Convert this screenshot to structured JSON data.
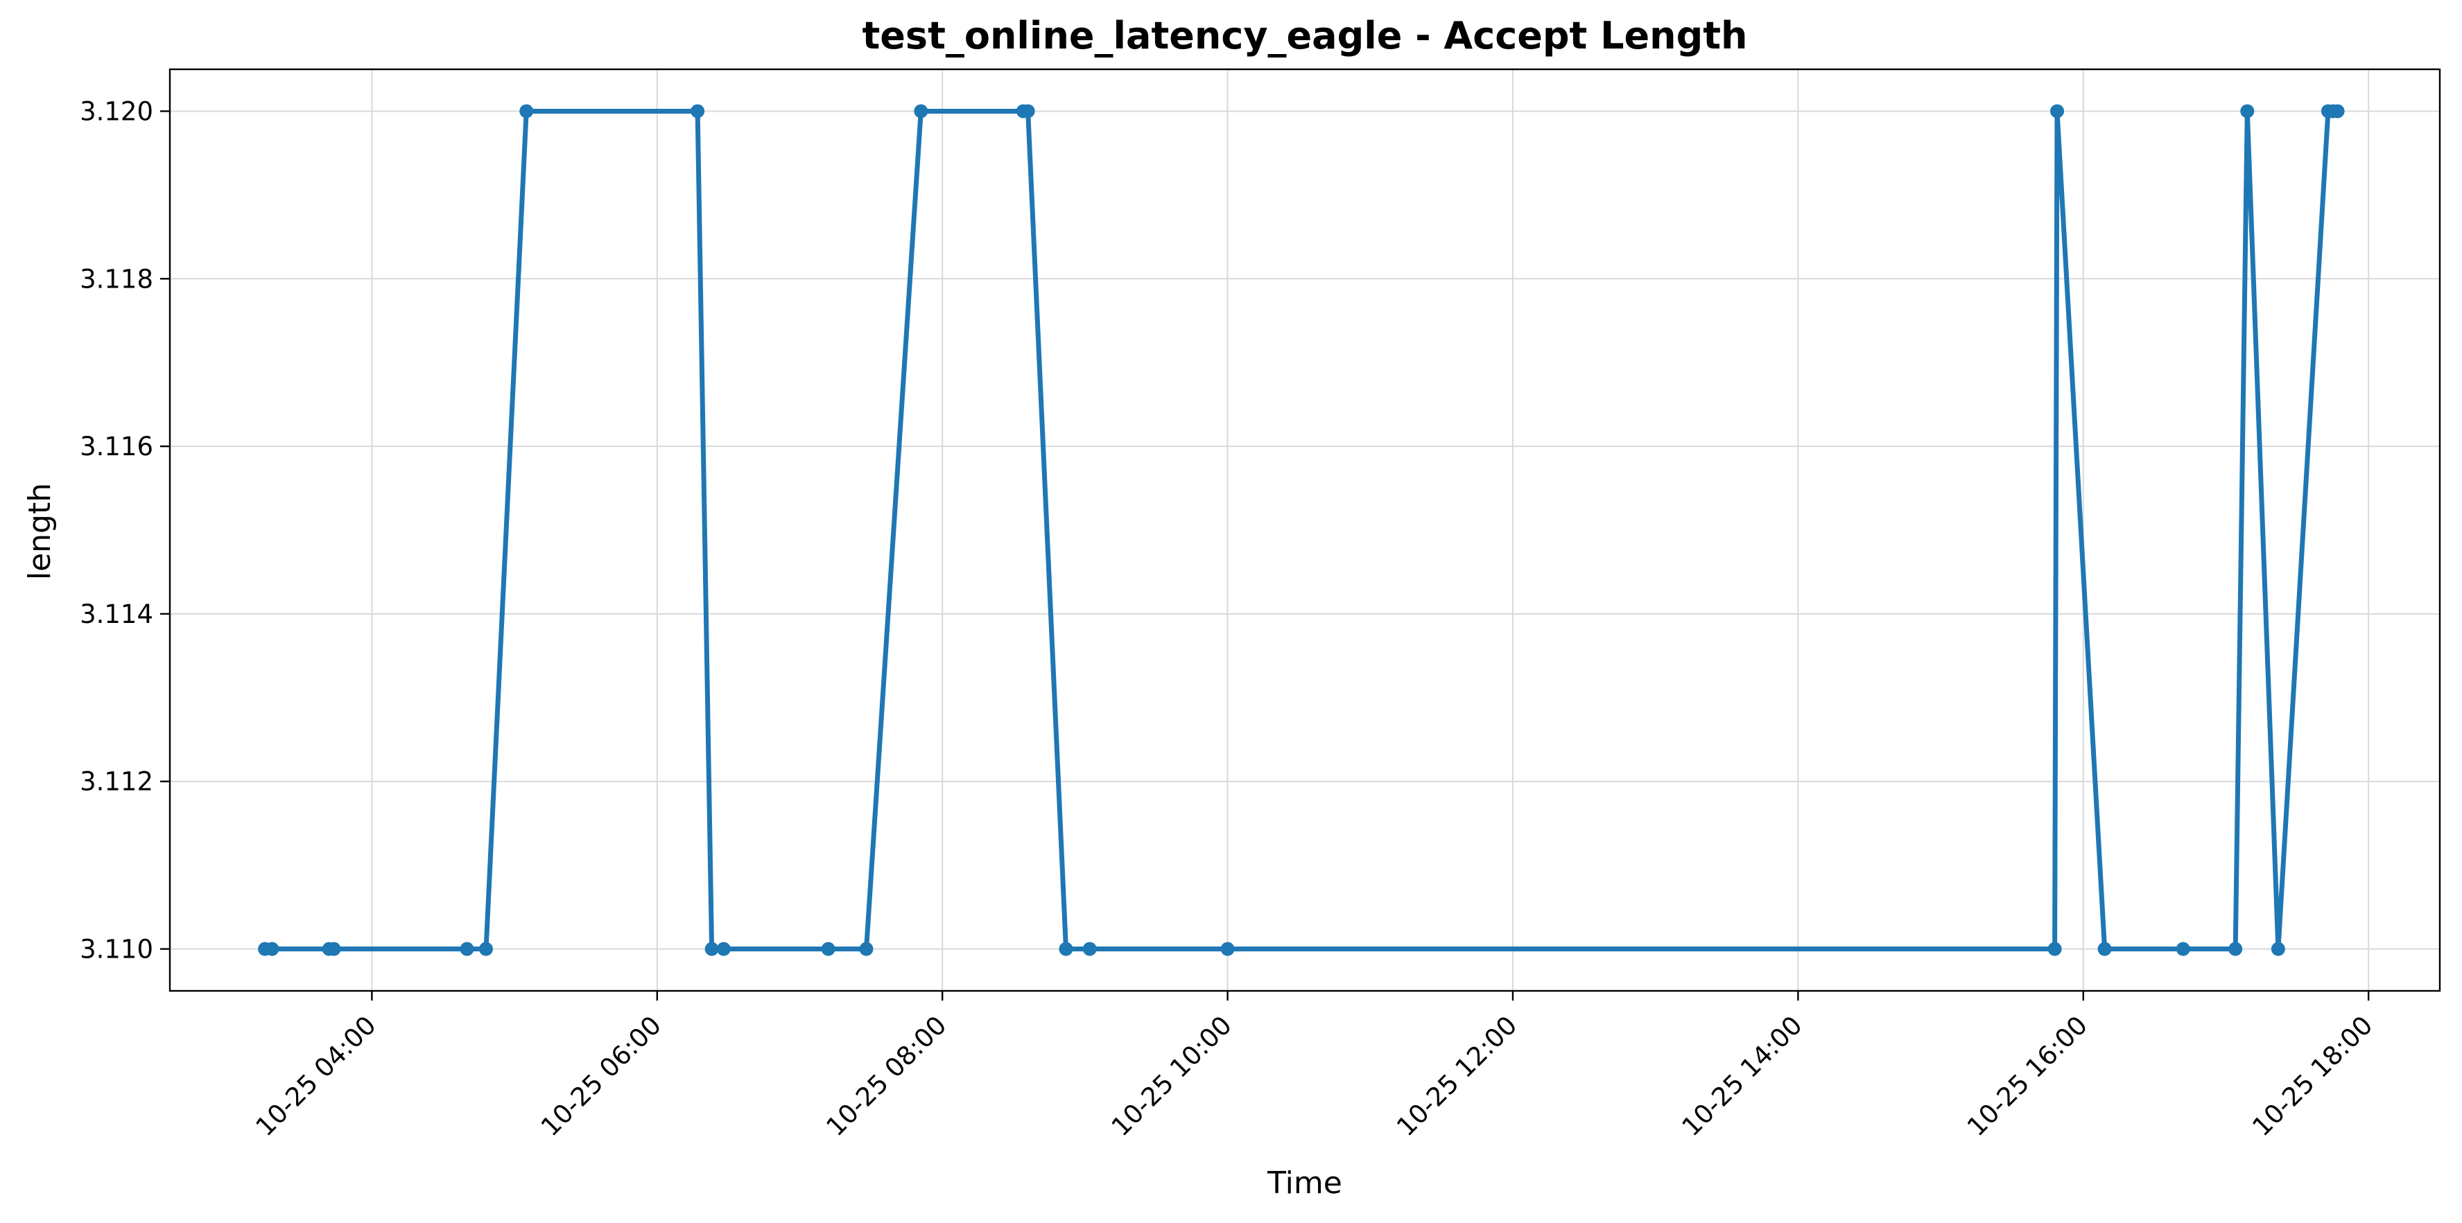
{
  "chart_data": {
    "type": "line",
    "title": "test_online_latency_eagle - Accept Length",
    "xlabel": "Time",
    "ylabel": "length",
    "grid": true,
    "legend": "none",
    "color": "#1f77b4",
    "x_ticks": [
      "10-25 04:00",
      "10-25 06:00",
      "10-25 08:00",
      "10-25 10:00",
      "10-25 12:00",
      "10-25 14:00",
      "10-25 16:00",
      "10-25 18:00"
    ],
    "y_ticks": [
      "3.110",
      "3.112",
      "3.114",
      "3.116",
      "3.118",
      "3.120"
    ],
    "xlim": [
      "10-25 02:35",
      "10-25 18:30"
    ],
    "ylim": [
      3.1095,
      3.1205
    ],
    "series": [
      {
        "x": [
          "10-25 03:15",
          "10-25 03:18",
          "10-25 03:42",
          "10-25 03:44",
          "10-25 04:40",
          "10-25 04:48",
          "10-25 05:05",
          "10-25 06:17",
          "10-25 06:23",
          "10-25 06:28",
          "10-25 07:12",
          "10-25 07:28",
          "10-25 07:51",
          "10-25 08:34",
          "10-25 08:36",
          "10-25 08:52",
          "10-25 09:02",
          "10-25 10:00",
          "10-25 15:48",
          "10-25 15:49",
          "10-25 16:09",
          "10-25 16:42",
          "10-25 17:04",
          "10-25 17:09",
          "10-25 17:22",
          "10-25 17:43",
          "10-25 17:45",
          "10-25 17:47"
        ],
        "values": [
          3.11,
          3.11,
          3.11,
          3.11,
          3.11,
          3.11,
          3.12,
          3.12,
          3.11,
          3.11,
          3.11,
          3.11,
          3.12,
          3.12,
          3.12,
          3.11,
          3.11,
          3.11,
          3.11,
          3.12,
          3.11,
          3.11,
          3.11,
          3.12,
          3.11,
          3.12,
          3.12,
          3.12
        ]
      }
    ]
  }
}
